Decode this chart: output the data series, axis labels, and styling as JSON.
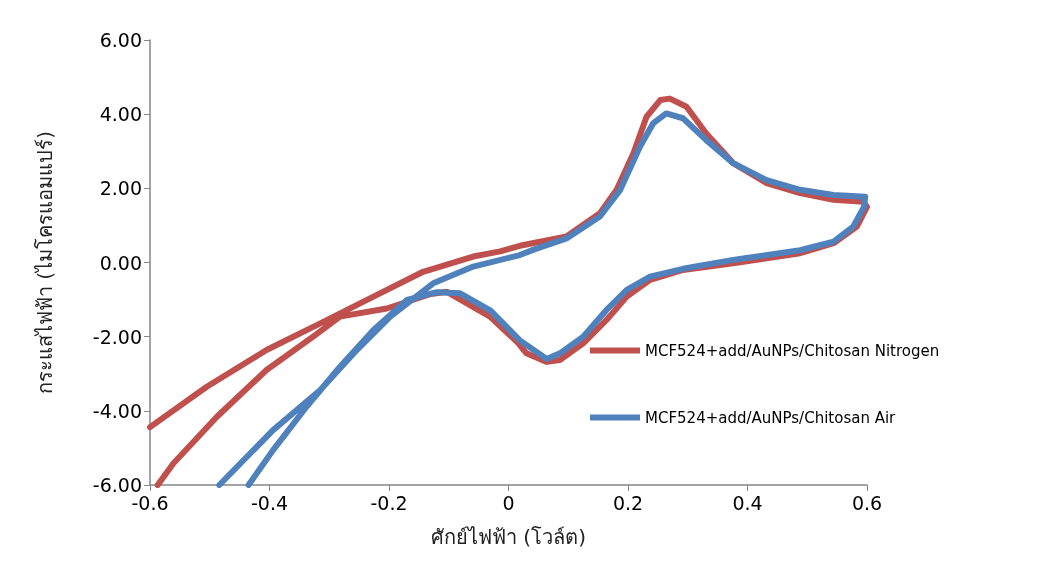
{
  "chart_data": {
    "type": "line",
    "xlabel": "ศักย์ไฟฟ้า (โวล์ต)",
    "ylabel": "กระแสไฟฟ้า (ไมโครแอมแปร์)",
    "xlim": [
      -0.6,
      0.6
    ],
    "xticks": [
      -0.6,
      -0.4,
      -0.2,
      0,
      0.2,
      0.4,
      0.6
    ],
    "ylim": [
      -6,
      6
    ],
    "yticks": [
      {
        "value": -6,
        "label": "-6.00"
      },
      {
        "value": -4,
        "label": "-4.00"
      },
      {
        "value": -2,
        "label": "-2.00"
      },
      {
        "value": 0,
        "label": "0.00"
      },
      {
        "value": 2,
        "label": "2.00"
      },
      {
        "value": 4,
        "label": "4.00"
      },
      {
        "value": 6,
        "label": "6.00"
      }
    ],
    "legend": "right",
    "marker": "none",
    "line_style": "solid",
    "series": [
      {
        "name": "MCF524+add/AuNPs/Chitosan Nitrogen",
        "color": "#c0504d",
        "x": [
          -0.6,
          -0.505,
          -0.405,
          -0.315,
          -0.226,
          -0.143,
          -0.059,
          -0.014,
          0.019,
          0.097,
          0.153,
          0.181,
          0.209,
          0.231,
          0.254,
          0.27,
          0.298,
          0.331,
          0.376,
          0.432,
          0.488,
          0.544,
          0.594,
          0.6,
          0.583,
          0.544,
          0.488,
          0.376,
          0.292,
          0.237,
          0.198,
          0.164,
          0.125,
          0.086,
          0.064,
          0.03,
          0.015,
          -0.031,
          -0.103,
          -0.13,
          -0.204,
          -0.282,
          -0.327,
          -0.405,
          -0.488,
          -0.561,
          -0.587
        ],
        "values": [
          -4.44,
          -3.35,
          -2.36,
          -1.64,
          -0.92,
          -0.25,
          0.16,
          0.3,
          0.45,
          0.7,
          1.33,
          1.96,
          2.94,
          3.93,
          4.38,
          4.42,
          4.2,
          3.48,
          2.68,
          2.14,
          1.87,
          1.69,
          1.64,
          1.5,
          0.97,
          0.52,
          0.25,
          -0.02,
          -0.2,
          -0.47,
          -0.92,
          -1.55,
          -2.18,
          -2.63,
          -2.68,
          -2.45,
          -2.15,
          -1.46,
          -0.79,
          -0.85,
          -1.24,
          -1.46,
          -2.0,
          -2.9,
          -4.16,
          -5.42,
          -6.0
        ]
      },
      {
        "name": "MCF524+add/AuNPs/Chitosan Air",
        "color": "#4f81bd",
        "x": [
          -0.484,
          -0.394,
          -0.315,
          -0.254,
          -0.198,
          -0.126,
          -0.059,
          0.019,
          0.041,
          0.097,
          0.153,
          0.187,
          0.22,
          0.242,
          0.264,
          0.292,
          0.331,
          0.376,
          0.432,
          0.488,
          0.544,
          0.597,
          0.595,
          0.577,
          0.544,
          0.488,
          0.376,
          0.292,
          0.237,
          0.198,
          0.164,
          0.125,
          0.086,
          0.064,
          0.019,
          -0.03,
          -0.081,
          -0.12,
          -0.17,
          -0.226,
          -0.282,
          -0.338,
          -0.394,
          -0.435
        ],
        "values": [
          -6.0,
          -4.52,
          -3.44,
          -2.36,
          -1.46,
          -0.56,
          -0.11,
          0.2,
          0.34,
          0.65,
          1.24,
          1.96,
          3.12,
          3.75,
          4.02,
          3.89,
          3.3,
          2.68,
          2.22,
          1.96,
          1.82,
          1.77,
          1.5,
          0.97,
          0.56,
          0.33,
          0.07,
          -0.17,
          -0.38,
          -0.74,
          -1.28,
          -2.0,
          -2.45,
          -2.6,
          -2.1,
          -1.3,
          -0.83,
          -0.8,
          -1.01,
          -1.82,
          -2.81,
          -3.89,
          -5.06,
          -6.0
        ]
      }
    ]
  }
}
